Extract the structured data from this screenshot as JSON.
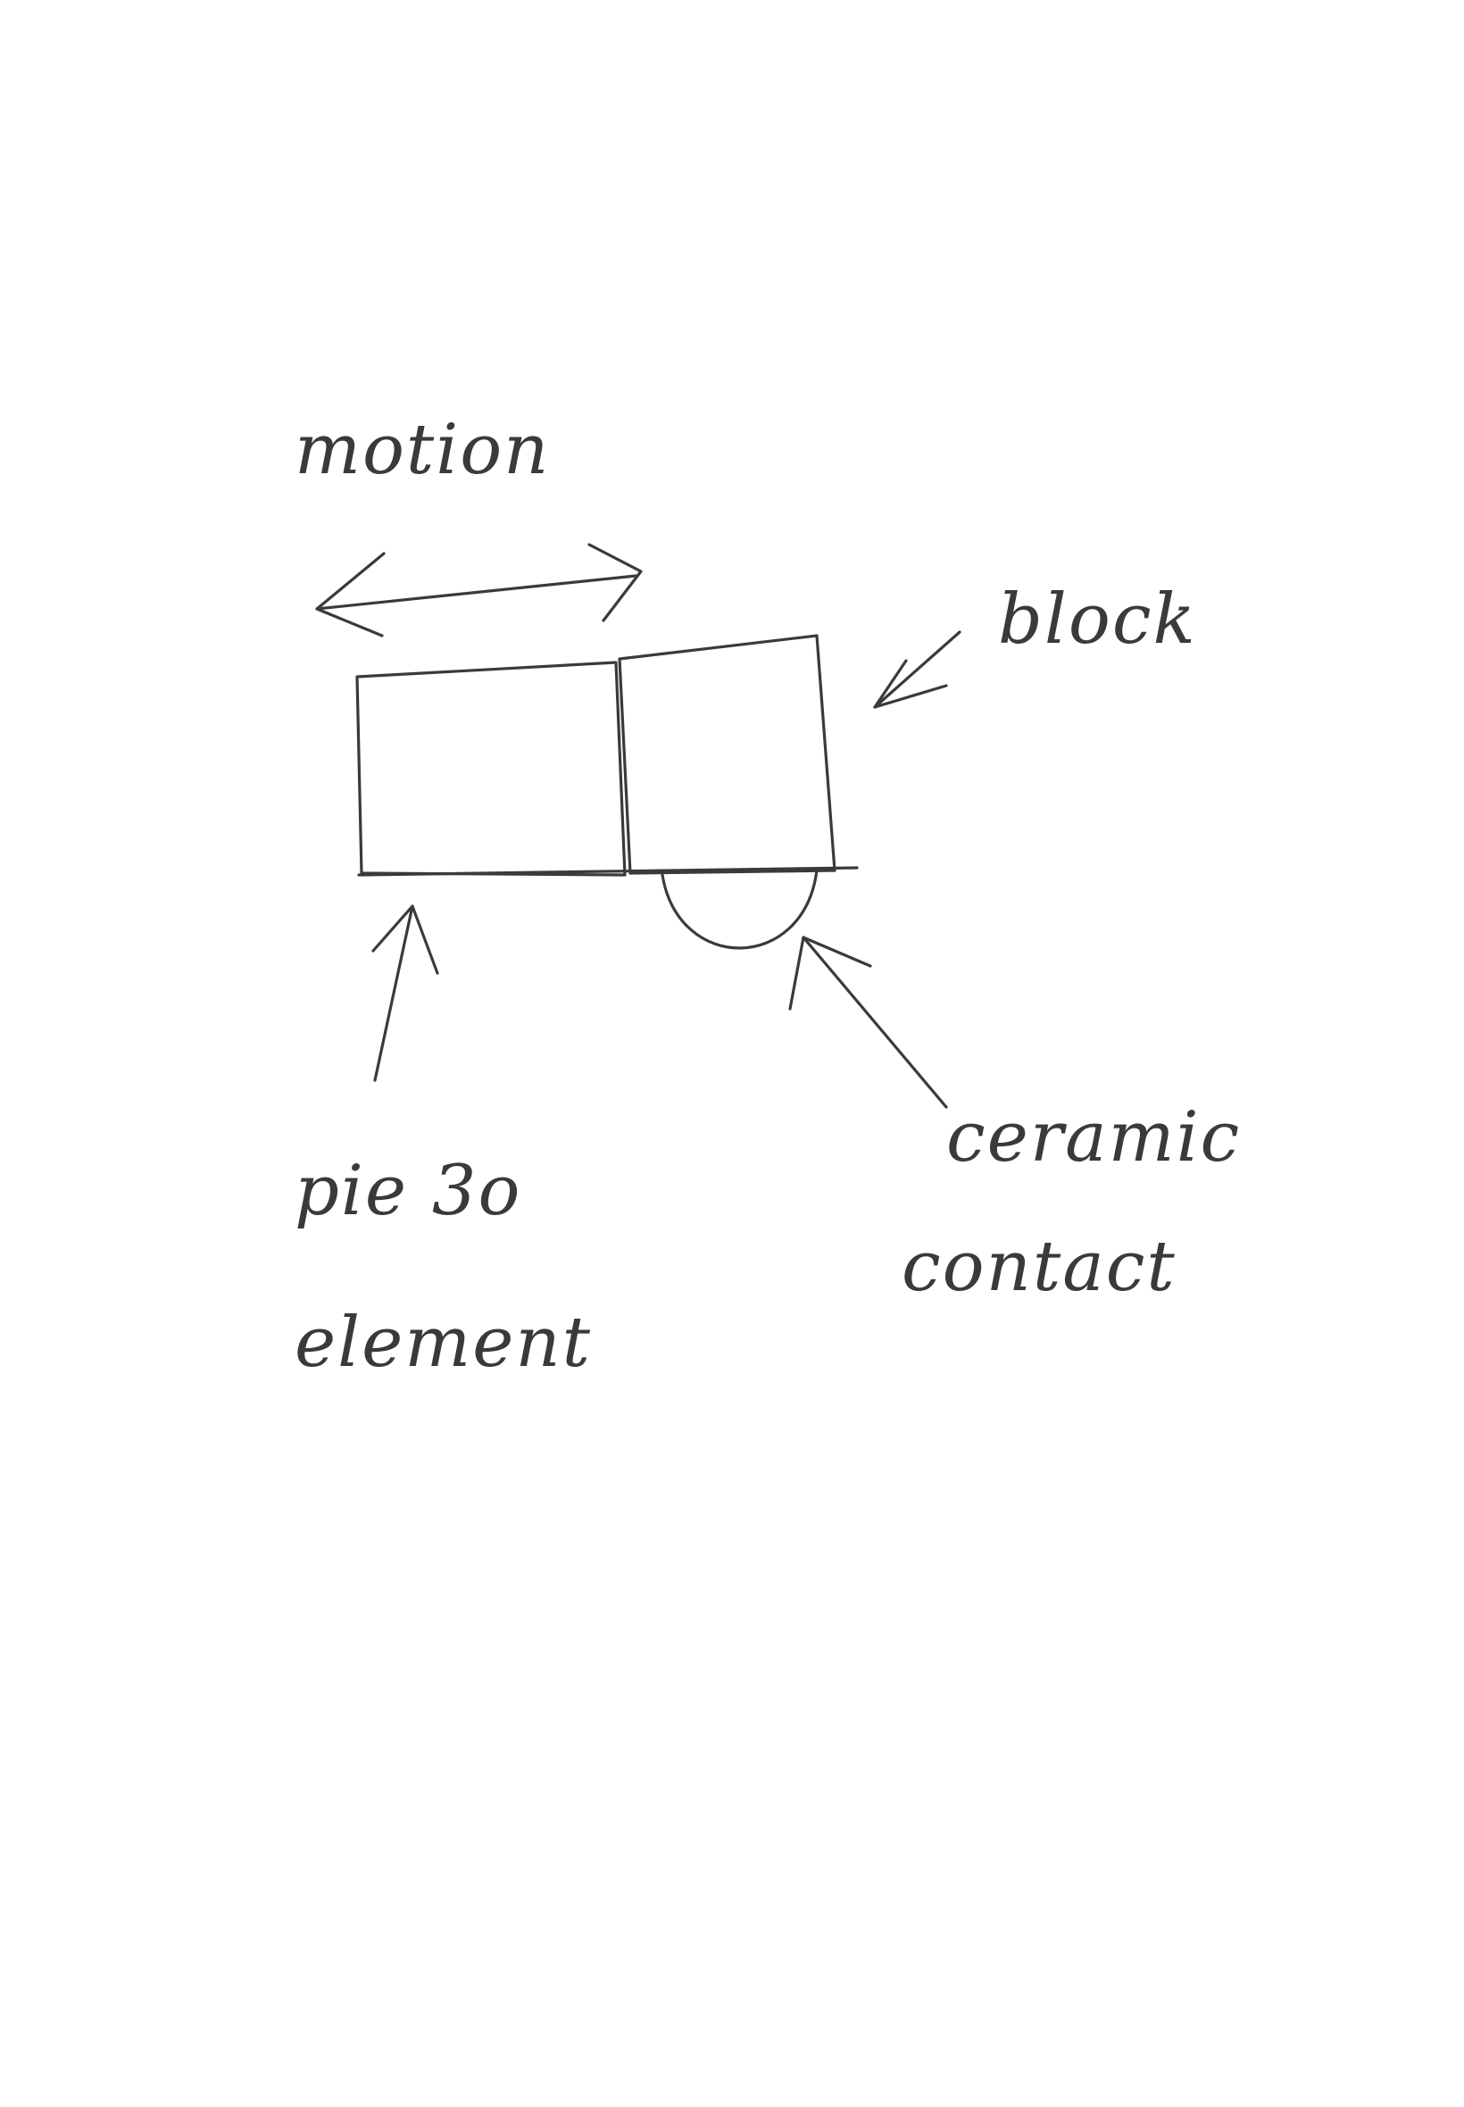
{
  "diagram": {
    "labels": {
      "motion": "motion",
      "block": "block",
      "piezo_line1": "pie 3o",
      "piezo_line2": "element",
      "ceramic_line1": "ceramic",
      "ceramic_line2": "contact"
    },
    "ink_color": "#3a3a3a",
    "background_color": "#ffffff"
  }
}
